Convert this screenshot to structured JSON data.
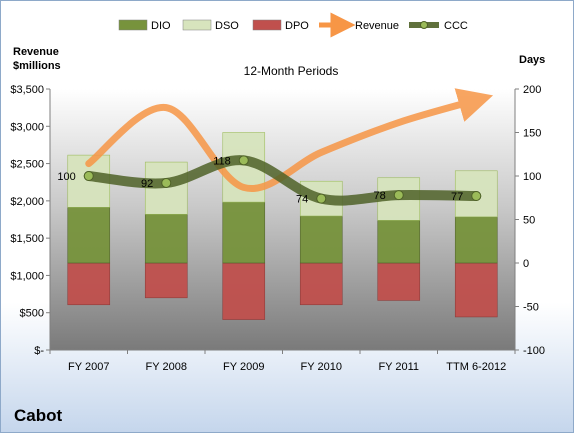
{
  "company": "Cabot",
  "chart_data": {
    "type": "bar",
    "title": "12-Month Periods",
    "left_axis_title": [
      "Revenue",
      "$millions"
    ],
    "right_axis_title": "Days",
    "categories": [
      "FY 2007",
      "FY 2008",
      "FY 2009",
      "FY 2010",
      "FY 2011",
      "TTM 6-2012"
    ],
    "left_axis": {
      "range": [
        0,
        3500
      ],
      "ticks": [
        0,
        500,
        1000,
        1500,
        2000,
        2500,
        3000,
        3500
      ],
      "tick_labels": [
        "$-",
        "$500",
        "$1,000",
        "$1,500",
        "$2,000",
        "$2,500",
        "$3,000",
        "$3,500"
      ]
    },
    "right_axis": {
      "range": [
        -100,
        200
      ],
      "ticks": [
        -100,
        -50,
        0,
        50,
        100,
        150,
        200
      ],
      "tick_labels": [
        "-100",
        "-50",
        "0",
        "50",
        "100",
        "150",
        "200"
      ]
    },
    "series": [
      {
        "name": "DIO",
        "type": "bar-stacked",
        "axis": "right",
        "color": "#77933c",
        "values": [
          64,
          56,
          70,
          54,
          49,
          53
        ]
      },
      {
        "name": "DSO",
        "type": "bar-stacked",
        "axis": "right",
        "color": "#d7e4bd",
        "values": [
          60,
          60,
          80,
          40,
          49,
          53
        ]
      },
      {
        "name": "DPO",
        "type": "bar-negative",
        "axis": "right",
        "color": "#c0504d",
        "values": [
          -48,
          -40,
          -65,
          -48,
          -43,
          -62
        ]
      },
      {
        "name": "Revenue",
        "type": "line-arrow",
        "axis": "left",
        "color": "#f79646",
        "values": [
          2500,
          3250,
          2180,
          2650,
          3050,
          3350
        ]
      },
      {
        "name": "CCC",
        "type": "line",
        "axis": "right",
        "color": "#4f6228",
        "values": [
          100,
          92,
          118,
          74,
          78,
          77
        ],
        "data_labels": [
          "100",
          "92",
          "118",
          "74",
          "78",
          "77"
        ]
      }
    ],
    "legend_position": "top",
    "grid": false
  }
}
